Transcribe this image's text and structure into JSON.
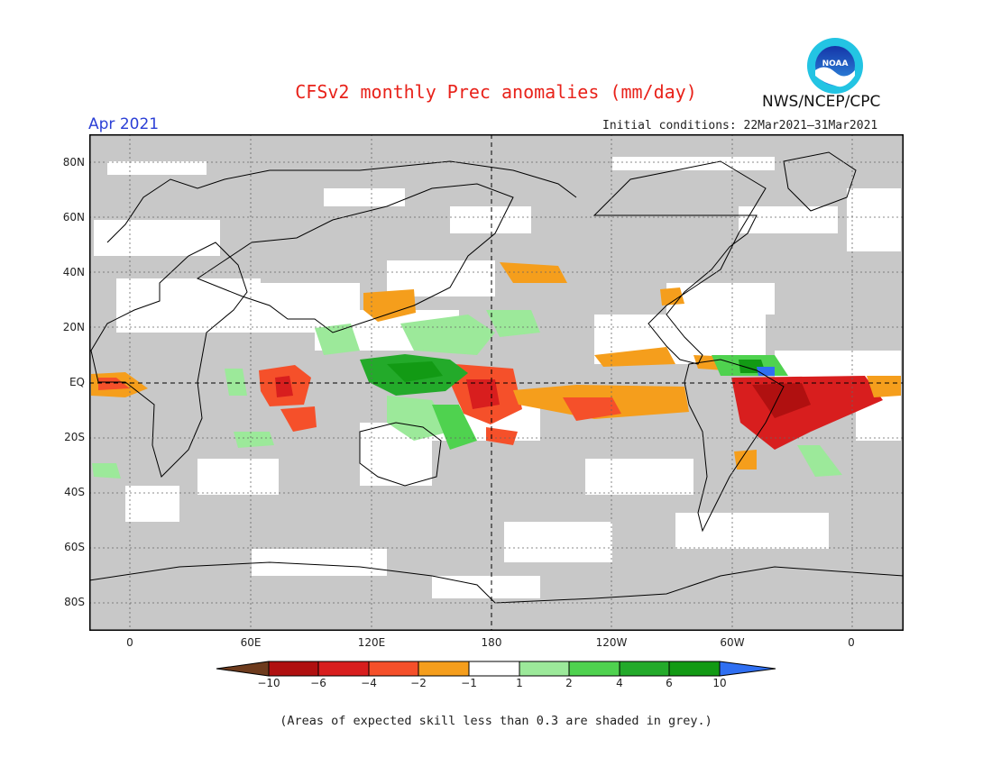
{
  "title": "CFSv2 monthly Prec anomalies (mm/day)",
  "agency": "NWS/NCEP/CPC",
  "forecast_month": "Apr 2021",
  "initial_conditions": "Initial conditions: 22Mar2021–31Mar2021",
  "logo_text": "NOAA",
  "footnote": "(Areas of expected skill less than 0.3 are shaded in grey.)",
  "lat_labels": [
    "80N",
    "60N",
    "40N",
    "20N",
    "EQ",
    "20S",
    "40S",
    "60S",
    "80S"
  ],
  "lon_labels": [
    "0",
    "60E",
    "120E",
    "180",
    "120W",
    "60W",
    "0"
  ],
  "colorbar": {
    "labels": [
      "−10",
      "−6",
      "−4",
      "−2",
      "−1",
      "1",
      "2",
      "4",
      "6",
      "10"
    ],
    "colors": [
      "#6e3b1d",
      "#b01010",
      "#d81e1e",
      "#f5502a",
      "#f59e1c",
      "#ffffff",
      "#9ce99a",
      "#4fd24f",
      "#23aa2a",
      "#129a14",
      "#2f6ff2"
    ]
  },
  "map_colors": {
    "skill_grey": "#c8c8c8",
    "land_outline": "#000000"
  }
}
